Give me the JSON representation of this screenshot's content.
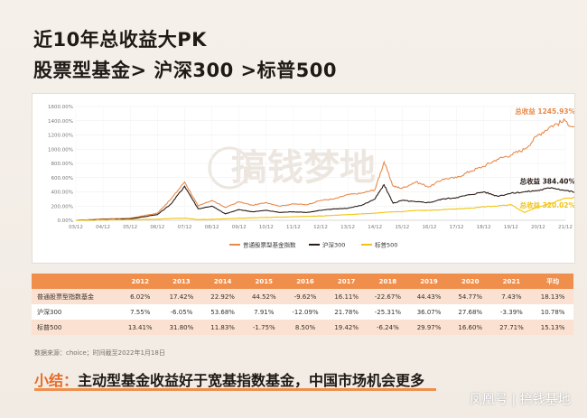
{
  "title_line1": "近10年总收益大PK",
  "title_line2": "股票型基金> 沪深300 >标普500",
  "chart_data": {
    "type": "line",
    "title": "",
    "xlabel": "",
    "ylabel": "",
    "ylim": [
      0,
      1600
    ],
    "y_ticks": [
      "0.00%",
      "200.00%",
      "400.00%",
      "600.00%",
      "800.00%",
      "1000.00%",
      "1200.00%",
      "1400.00%",
      "1600.00%"
    ],
    "x_ticks": [
      "03/12",
      "04/12",
      "05/12",
      "06/12",
      "07/12",
      "08/12",
      "09/12",
      "10/12",
      "11/12",
      "12/12",
      "13/12",
      "14/12",
      "15/12",
      "16/12",
      "17/12",
      "18/12",
      "19/12",
      "20/12",
      "21/12"
    ],
    "grid": true,
    "legend_position": "bottom",
    "series": [
      {
        "name": "普通股票型基金指数",
        "color": "#e88a4a",
        "x": [
          "03/12",
          "04/12",
          "05/12",
          "06/12",
          "06/12",
          "07/12",
          "07/12",
          "08/12",
          "08/12",
          "09/12",
          "09/12",
          "10/12",
          "10/12",
          "11/12",
          "11/12",
          "12/12",
          "12/12",
          "13/12",
          "13/12",
          "14/12",
          "14/12",
          "14/12",
          "15/12",
          "15/12",
          "16/12",
          "16/12",
          "17/12",
          "17/12",
          "18/12",
          "18/12",
          "19/12",
          "19/12",
          "20/12",
          "20/12",
          "21/12",
          "21/12"
        ],
        "values": [
          0,
          20,
          30,
          100,
          300,
          540,
          200,
          280,
          180,
          260,
          210,
          250,
          200,
          230,
          220,
          280,
          300,
          360,
          380,
          430,
          820,
          480,
          450,
          540,
          470,
          580,
          600,
          690,
          760,
          860,
          920,
          1000,
          1200,
          1330,
          1400,
          1245.93
        ],
        "end_label": "总收益 1245.93%"
      },
      {
        "name": "沪深300",
        "color": "#2a1d18",
        "x": [
          "03/12",
          "04/12",
          "05/12",
          "06/12",
          "06/12",
          "07/12",
          "07/12",
          "08/12",
          "08/12",
          "09/12",
          "09/12",
          "10/12",
          "10/12",
          "11/12",
          "11/12",
          "12/12",
          "12/12",
          "13/12",
          "13/12",
          "14/12",
          "14/12",
          "14/12",
          "15/12",
          "15/12",
          "16/12",
          "16/12",
          "17/12",
          "17/12",
          "18/12",
          "18/12",
          "19/12",
          "19/12",
          "20/12",
          "20/12",
          "21/12",
          "21/12"
        ],
        "values": [
          0,
          10,
          20,
          80,
          230,
          480,
          160,
          200,
          90,
          150,
          120,
          140,
          110,
          120,
          110,
          140,
          160,
          170,
          210,
          300,
          500,
          240,
          280,
          260,
          250,
          300,
          320,
          360,
          400,
          340,
          380,
          400,
          420,
          460,
          420,
          384.4
        ],
        "end_label": "总收益 384.40%"
      },
      {
        "name": "标普500",
        "color": "#f2c40f",
        "x": [
          "03/12",
          "04/12",
          "05/12",
          "06/12",
          "06/12",
          "07/12",
          "07/12",
          "08/12",
          "08/12",
          "09/12",
          "09/12",
          "10/12",
          "10/12",
          "11/12",
          "11/12",
          "12/12",
          "12/12",
          "13/12",
          "13/12",
          "14/12",
          "14/12",
          "14/12",
          "15/12",
          "15/12",
          "16/12",
          "16/12",
          "17/12",
          "17/12",
          "18/12",
          "18/12",
          "19/12",
          "19/12",
          "20/12",
          "20/12",
          "21/12",
          "21/12"
        ],
        "values": [
          0,
          5,
          10,
          15,
          25,
          30,
          10,
          15,
          20,
          30,
          35,
          40,
          45,
          50,
          55,
          60,
          70,
          80,
          90,
          100,
          110,
          120,
          120,
          140,
          140,
          150,
          160,
          170,
          190,
          200,
          220,
          110,
          190,
          240,
          310,
          320.02
        ],
        "end_label": "总收益 320.02%"
      }
    ]
  },
  "table": {
    "headers": [
      "",
      "2012",
      "2013",
      "2014",
      "2015",
      "2016",
      "2017",
      "2018",
      "2019",
      "2020",
      "2021",
      "平均"
    ],
    "rows": [
      [
        "普通股票型指数基金",
        "6.02%",
        "17.42%",
        "22.92%",
        "44.52%",
        "-9.62%",
        "16.11%",
        "-22.67%",
        "44.43%",
        "54.77%",
        "7.43%",
        "18.13%"
      ],
      [
        "沪深300",
        "7.55%",
        "-6.05%",
        "53.68%",
        "7.91%",
        "-12.09%",
        "21.78%",
        "-25.31%",
        "36.07%",
        "27.68%",
        "-3.39%",
        "10.78%"
      ],
      [
        "标普500",
        "13.41%",
        "31.80%",
        "11.83%",
        "-1.75%",
        "8.50%",
        "19.42%",
        "-6.24%",
        "29.97%",
        "16.60%",
        "27.71%",
        "15.13%"
      ]
    ]
  },
  "source_note": "数据来源：choice；时间截至2022年1月18日",
  "summary": {
    "prefix": "小结：",
    "text": "主动型基金收益好于宽基指数基金，中国市场机会更多"
  },
  "watermark": "搞钱梦地",
  "brand": "凤凰号 | 搞钱基地"
}
